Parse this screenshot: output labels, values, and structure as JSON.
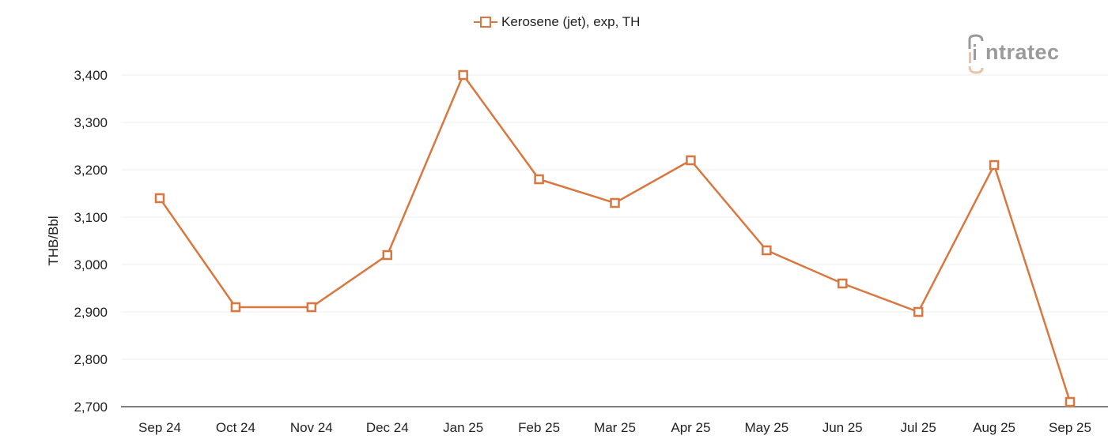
{
  "legend": {
    "label": "Kerosene (jet), exp, TH",
    "marker": "hollow-square-line-icon"
  },
  "logo": {
    "text": "intratec"
  },
  "colors": {
    "series": "#D9773E",
    "grid": "#EEEEEE",
    "axis": "#555555",
    "logo_text": "#9A9A9A",
    "logo_accent": "#E8C4A8"
  },
  "chart_data": {
    "type": "line",
    "title": "",
    "xlabel": "",
    "ylabel": "THB/Bbl",
    "ylim": [
      2700,
      3400
    ],
    "yticks": [
      2700,
      2800,
      2900,
      3000,
      3100,
      3200,
      3300,
      3400
    ],
    "ytick_labels": [
      "2,700",
      "2,800",
      "2,900",
      "3,000",
      "3,100",
      "3,200",
      "3,300",
      "3,400"
    ],
    "grid": true,
    "legend_position": "top-center",
    "categories": [
      "Sep 24",
      "Oct 24",
      "Nov 24",
      "Dec 24",
      "Jan 25",
      "Feb 25",
      "Mar 25",
      "Apr 25",
      "May 25",
      "Jun 25",
      "Jul 25",
      "Aug 25",
      "Sep 25"
    ],
    "series": [
      {
        "name": "Kerosene (jet), exp, TH",
        "marker": "hollow-square",
        "values": [
          3140,
          2910,
          2910,
          3020,
          3400,
          3180,
          3130,
          3220,
          3030,
          2960,
          2900,
          3210,
          2710
        ]
      }
    ]
  }
}
